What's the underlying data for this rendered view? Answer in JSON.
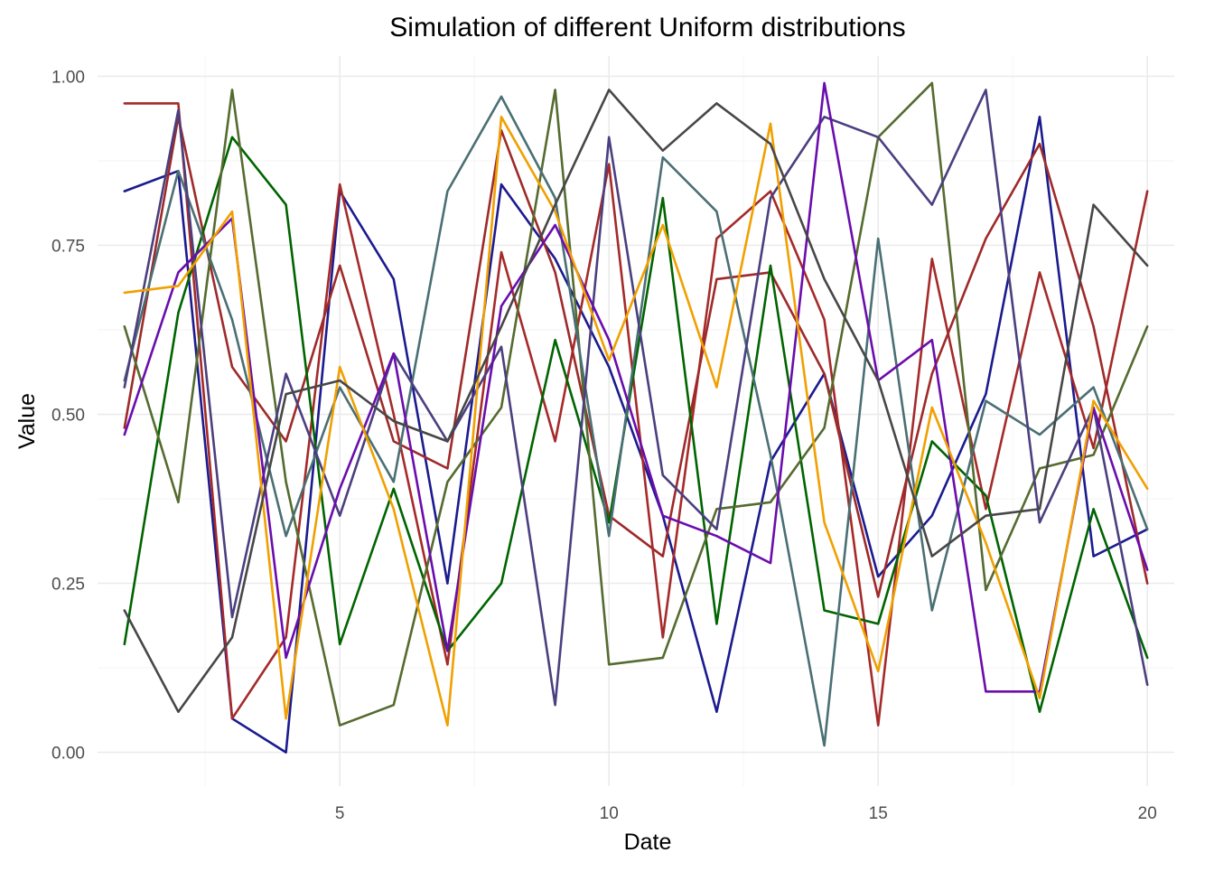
{
  "chart_data": {
    "type": "line",
    "title": "Simulation of different Uniform distributions",
    "xlabel": "Date",
    "ylabel": "Value",
    "xlim": [
      0.5,
      20.5
    ],
    "ylim": [
      -0.05,
      1.03
    ],
    "x_ticks": [
      5,
      10,
      15,
      20
    ],
    "x_tick_labels": [
      "5",
      "10",
      "15",
      "20"
    ],
    "y_ticks": [
      0,
      0.25,
      0.5,
      0.75,
      1
    ],
    "y_tick_labels": [
      "0.00",
      "0.25",
      "0.50",
      "0.75",
      "1.00"
    ],
    "grid": true,
    "legend": "none",
    "x": [
      1,
      2,
      3,
      4,
      5,
      6,
      7,
      8,
      9,
      10,
      11,
      12,
      13,
      14,
      15,
      16,
      17,
      18,
      19,
      20
    ],
    "series": [
      {
        "color": "#1b1b8f",
        "values": [
          0.83,
          0.86,
          0.05,
          0.0,
          0.83,
          0.7,
          0.25,
          0.84,
          0.73,
          0.57,
          0.35,
          0.06,
          0.43,
          0.56,
          0.26,
          0.35,
          0.53,
          0.94,
          0.29,
          0.33
        ]
      },
      {
        "color": "#a52a2a",
        "values": [
          0.96,
          0.96,
          0.05,
          0.17,
          0.84,
          0.5,
          0.13,
          0.74,
          0.46,
          0.87,
          0.17,
          0.76,
          0.83,
          0.64,
          0.04,
          0.73,
          0.36,
          0.71,
          0.45,
          0.83
        ]
      },
      {
        "color": "#9e2a2a",
        "values": [
          0.48,
          0.94,
          0.57,
          0.46,
          0.72,
          0.46,
          0.42,
          0.92,
          0.71,
          0.35,
          0.29,
          0.7,
          0.71,
          0.56,
          0.23,
          0.56,
          0.76,
          0.9,
          0.63,
          0.25
        ]
      },
      {
        "color": "#006400",
        "values": [
          0.16,
          0.65,
          0.91,
          0.81,
          0.16,
          0.39,
          0.15,
          0.25,
          0.61,
          0.34,
          0.82,
          0.19,
          0.72,
          0.21,
          0.19,
          0.46,
          0.38,
          0.06,
          0.36,
          0.14
        ]
      },
      {
        "color": "#556b2f",
        "values": [
          0.63,
          0.37,
          0.98,
          0.4,
          0.04,
          0.07,
          0.4,
          0.51,
          0.98,
          0.13,
          0.14,
          0.36,
          0.37,
          0.48,
          0.91,
          0.99,
          0.24,
          0.42,
          0.44,
          0.63
        ]
      },
      {
        "color": "#4a6f74",
        "values": [
          0.55,
          0.86,
          0.64,
          0.32,
          0.54,
          0.4,
          0.83,
          0.97,
          0.82,
          0.32,
          0.88,
          0.8,
          0.44,
          0.01,
          0.76,
          0.21,
          0.52,
          0.47,
          0.54,
          0.33
        ]
      },
      {
        "color": "#4b3f7f",
        "values": [
          0.54,
          0.95,
          0.2,
          0.56,
          0.35,
          0.59,
          0.46,
          0.6,
          0.07,
          0.91,
          0.41,
          0.33,
          0.82,
          0.94,
          0.91,
          0.81,
          0.98,
          0.34,
          0.51,
          0.1
        ]
      },
      {
        "color": "#6a0dad",
        "values": [
          0.47,
          0.71,
          0.79,
          0.14,
          0.39,
          0.59,
          0.15,
          0.66,
          0.78,
          0.61,
          0.35,
          0.32,
          0.28,
          0.99,
          0.55,
          0.61,
          0.09,
          0.09,
          0.51,
          0.27
        ]
      },
      {
        "color": "#f0a000",
        "values": [
          0.68,
          0.69,
          0.8,
          0.05,
          0.57,
          0.36,
          0.04,
          0.94,
          0.8,
          0.58,
          0.78,
          0.54,
          0.93,
          0.34,
          0.12,
          0.51,
          0.31,
          0.08,
          0.52,
          0.39
        ]
      },
      {
        "color": "#474747",
        "values": [
          0.21,
          0.06,
          0.17,
          0.53,
          0.55,
          0.49,
          0.46,
          0.63,
          0.81,
          0.98,
          0.89,
          0.96,
          0.9,
          0.7,
          0.55,
          0.29,
          0.35,
          0.36,
          0.81,
          0.72
        ]
      }
    ]
  }
}
